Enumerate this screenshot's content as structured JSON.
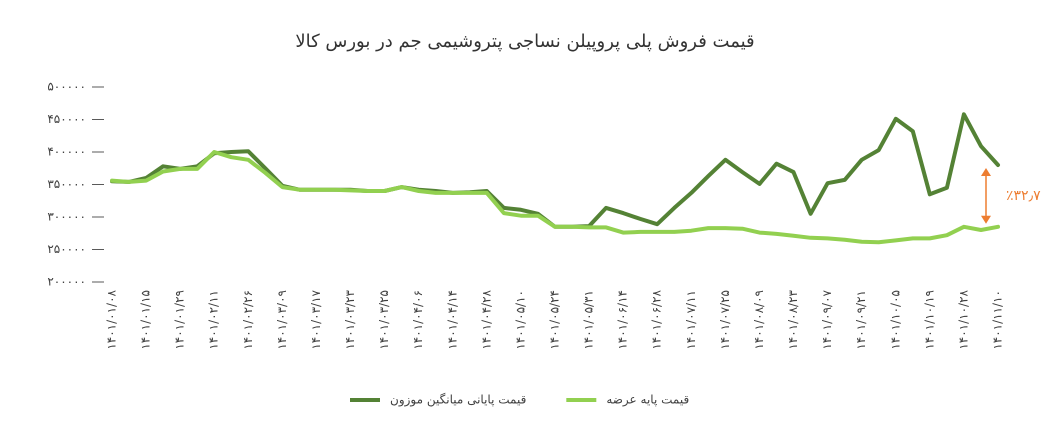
{
  "chart_data": {
    "type": "line",
    "title": "قیمت فروش پلی پروپیلن نساجی پتروشیمی جم در بورس کالا",
    "categories": [
      "۱۴۰۱/۰۱/۰۸",
      null,
      "۱۴۰۱/۰۱/۱۵",
      null,
      "۱۴۰۱/۰۱/۲۹",
      null,
      "۱۴۰۱/۰۲/۱۱",
      null,
      "۱۴۰۱/۰۲/۲۶",
      null,
      "۱۴۰۱/۰۳/۰۹",
      null,
      "۱۴۰۱/۰۳/۱۷",
      null,
      "۱۴۰۱/۰۳/۲۳",
      null,
      "۱۴۰۱/۰۳/۲۵",
      null,
      "۱۴۰۱/۰۴/۰۶",
      null,
      "۱۴۰۱/۰۴/۱۴",
      null,
      "۱۴۰۱/۰۴/۲۸",
      null,
      "۱۴۰۱/۰۵/۱۰",
      null,
      "۱۴۰۱/۰۵/۲۴",
      null,
      "۱۴۰۱/۰۵/۳۱",
      null,
      "۱۴۰۱/۰۶/۱۴",
      null,
      "۱۴۰۱/۰۶/۲۸",
      null,
      "۱۴۰۱/۰۷/۱۱",
      null,
      "۱۴۰۱/۰۷/۲۵",
      null,
      "۱۴۰۱/۰۸/۰۹",
      null,
      "۱۴۰۱/۰۸/۲۳",
      null,
      "۱۴۰۱/۰۹/۰۷",
      null,
      "۱۴۰۱/۰۹/۲۱",
      null,
      "۱۴۰۱/۱۰/۰۵",
      null,
      "۱۴۰۱/۱۰/۱۹",
      null,
      "۱۴۰۱/۱۰/۲۸",
      null,
      "۱۴۰۱/۱۱/۱۰"
    ],
    "series": [
      {
        "name": "قیمت پایانی میانگین موزون",
        "color": "#548235",
        "values": [
          355000,
          354000,
          360000,
          378000,
          374000,
          378000,
          398000,
          400000,
          401000,
          375000,
          348000,
          342000,
          342000,
          342000,
          342000,
          340000,
          340000,
          346000,
          342000,
          340000,
          337000,
          338000,
          340000,
          314000,
          311000,
          305000,
          285000,
          285000,
          286000,
          314000,
          306000,
          297000,
          289000,
          314000,
          337000,
          363000,
          388000,
          369000,
          351000,
          382000,
          369000,
          305000,
          352000,
          357000,
          388000,
          403000,
          451000,
          432000,
          335000,
          345000,
          458000,
          409000,
          380000
        ]
      },
      {
        "name": "قیمت پایه عرضه",
        "color": "#92d050",
        "values": [
          356000,
          354000,
          356000,
          370000,
          374000,
          374000,
          400000,
          392000,
          388000,
          368000,
          346000,
          342000,
          342000,
          342000,
          341000,
          340000,
          340000,
          346000,
          340000,
          337000,
          337000,
          337000,
          337000,
          306000,
          302000,
          302000,
          285000,
          285000,
          284000,
          284000,
          276000,
          277000,
          277000,
          277000,
          279000,
          283000,
          283000,
          282000,
          276000,
          274000,
          271000,
          268000,
          267000,
          265000,
          262000,
          261000,
          264000,
          267000,
          267000,
          272000,
          285000,
          280000,
          285000
        ]
      }
    ],
    "ylim": [
      200000,
      500000
    ],
    "yticks": [
      {
        "value": 200000,
        "label": "۲۰۰۰۰۰"
      },
      {
        "value": 250000,
        "label": "۲۵۰۰۰۰"
      },
      {
        "value": 300000,
        "label": "۳۰۰۰۰۰"
      },
      {
        "value": 350000,
        "label": "۳۵۰۰۰۰"
      },
      {
        "value": 400000,
        "label": "۴۰۰۰۰۰"
      },
      {
        "value": 450000,
        "label": "۴۵۰۰۰۰"
      },
      {
        "value": 500000,
        "label": "۵۰۰۰۰۰"
      }
    ],
    "grid": false,
    "annotation": "٪۳۲٫۷",
    "annotation_color": "#ed7d31"
  }
}
